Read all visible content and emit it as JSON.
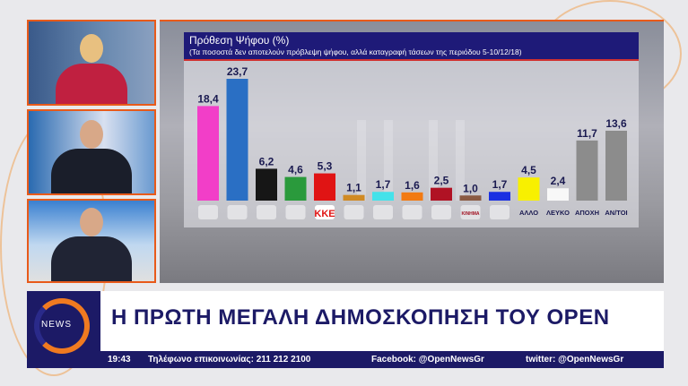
{
  "chart_data": {
    "type": "bar",
    "title": "Πρόθεση Ψήφου (%)",
    "subtitle": "(Τα ποσοστά δεν αποτελούν πρόβλεψη ψήφου, αλλά καταγραφή τάσεων της περιόδου 5-10/12/18)",
    "categories": [
      {
        "logo": "syriza-logo-icon",
        "label": ""
      },
      {
        "logo": "nd-logo-icon",
        "label": ""
      },
      {
        "logo": "golden-dawn-logo-icon",
        "label": ""
      },
      {
        "logo": "kinal-logo-icon",
        "label": ""
      },
      {
        "logo": "kke-logo-icon",
        "label": "ΚΚΕ"
      },
      {
        "logo": "party-logo-icon",
        "label": ""
      },
      {
        "logo": "party-logo-icon",
        "label": ""
      },
      {
        "logo": "party-logo-icon",
        "label": ""
      },
      {
        "logo": "party-logo-icon",
        "label": ""
      },
      {
        "logo": "kinima-logo-icon",
        "label": "ΚΙΝΗΜΑ"
      },
      {
        "logo": "party-logo-icon",
        "label": ""
      },
      {
        "logo": "",
        "label": "ΑΛΛΟ"
      },
      {
        "logo": "",
        "label": "ΛΕΥΚΟ"
      },
      {
        "logo": "",
        "label": "ΑΠΟΧΗ"
      },
      {
        "logo": "",
        "label": "ΑΝ/ΤΟΙ"
      }
    ],
    "values": [
      18.4,
      23.7,
      6.2,
      4.6,
      5.3,
      1.1,
      1.7,
      1.6,
      2.5,
      1.0,
      1.7,
      4.5,
      2.4,
      11.7,
      13.6
    ],
    "value_labels": [
      "18,4",
      "23,7",
      "6,2",
      "4,6",
      "5,3",
      "1,1",
      "1,7",
      "1,6",
      "2,5",
      "1,0",
      "1,7",
      "4,5",
      "2,4",
      "11,7",
      "13,6"
    ],
    "colors": [
      "#f23ec8",
      "#2a6fc4",
      "#161616",
      "#2a9a3c",
      "#e01414",
      "#d08a24",
      "#44e2ea",
      "#f27a12",
      "#b01224",
      "#8a5a42",
      "#1a30e2",
      "#f8f000",
      "#f8f8f8",
      "#8c8c8c",
      "#8c8c8c"
    ],
    "ylim": [
      0,
      25
    ],
    "grid": false,
    "legend": "none"
  },
  "banner": {
    "logo_text": "NEWS",
    "headline": "Η ΠΡΩΤΗ ΜΕΓΑΛΗ ΔΗΜΟΣΚΟΠΗΣΗ ΤΟΥ OPEN",
    "time": "19:43",
    "phone": "Τηλέφωνο επικοινωνίας: 211 212 2100",
    "facebook": "Facebook: @OpenNewsGr",
    "twitter": "twitter: @OpenNewsGr"
  }
}
